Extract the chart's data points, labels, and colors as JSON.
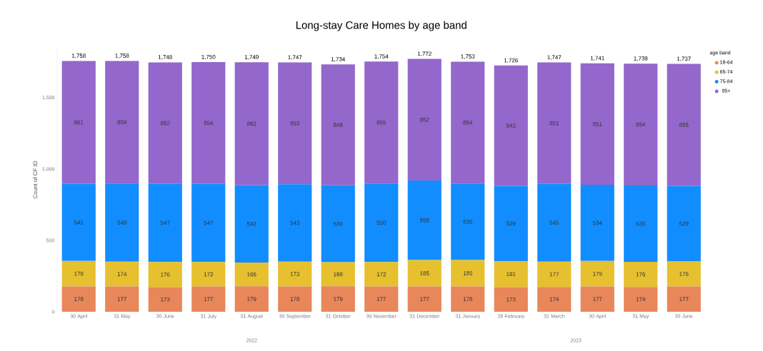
{
  "chart_data": {
    "type": "bar",
    "stacked": true,
    "title": "Long-stay Care Homes by age band",
    "ylabel": "Count of CF ID",
    "legend_title": "age band",
    "legend": "top right",
    "categories": [
      "30 April",
      "31 May",
      "30 June",
      "31 July",
      "31 August",
      "30 September",
      "31 October",
      "30 November",
      "31 December",
      "31 January",
      "28 February",
      "31 March",
      "30 April",
      "31 May",
      "30 June"
    ],
    "series": [
      {
        "name": "18-64",
        "color": "#e8875a",
        "values": [
          178,
          177,
          173,
          177,
          179,
          178,
          179,
          177,
          177,
          178,
          173,
          174,
          177,
          174,
          177
        ]
      },
      {
        "name": "65-74",
        "color": "#e6c02e",
        "values": [
          178,
          174,
          176,
          172,
          166,
          173,
          168,
          172,
          185,
          185,
          181,
          177,
          179,
          176,
          176
        ]
      },
      {
        "name": "75-84",
        "color": "#118dff",
        "values": [
          541,
          548,
          547,
          547,
          542,
          543,
          539,
          550,
          558,
          536,
          529,
          545,
          534,
          535,
          529
        ]
      },
      {
        "name": "85+",
        "color": "#9467cc",
        "values": [
          861,
          859,
          852,
          854,
          862,
          853,
          848,
          855,
          852,
          854,
          843,
          851,
          851,
          854,
          855
        ]
      }
    ],
    "totals": [
      "1,758",
      "1,758",
      "1,748",
      "1,750",
      "1,749",
      "1,747",
      "1,734",
      "1,754",
      "1,772",
      "1,753",
      "1,726",
      "1,747",
      "1,741",
      "1,739",
      "1,737"
    ],
    "data_labels": true,
    "ylim": [
      0,
      1850
    ],
    "yticks": [
      0,
      500,
      {
        "value": 1000,
        "label": "1,000"
      },
      {
        "value": 1500,
        "label": "1,500"
      }
    ],
    "annotations": [
      "2022",
      "2023"
    ]
  }
}
